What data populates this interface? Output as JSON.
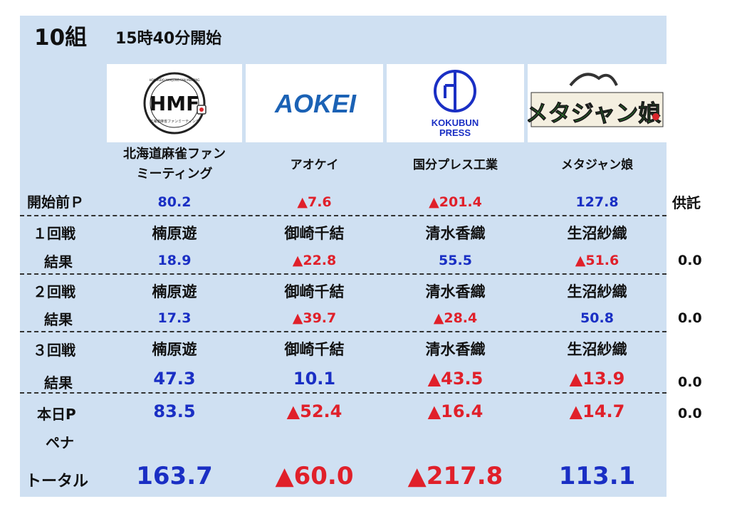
{
  "header": {
    "group": "10組",
    "start_time": "15時40分開始"
  },
  "teams": [
    {
      "name_line1": "北海道麻雀ファン",
      "name_line2": "ミーティング",
      "logo_text": "HMF",
      "logo_ring": "HOKKAIDO MAHJONG FAN MEETING",
      "logo_sub": "北海道麻雀ファンミーティング"
    },
    {
      "name_line1": "アオケイ",
      "logo_text": "AOKEI"
    },
    {
      "name_line1": "国分プレス工業",
      "logo_text": "KOKUBUN PRESS",
      "logo_line1": "KOKUBUN",
      "logo_line2": "PRESS"
    },
    {
      "name_line1": "メタジャン娘",
      "logo_text": "メタジャン娘"
    }
  ],
  "labels": {
    "start_p": "開始前Ｐ",
    "kyotaku": "供託",
    "round1": "１回戦",
    "round2": "２回戦",
    "round3": "３回戦",
    "result": "結果",
    "today": "本日P",
    "penalty": "ペナ",
    "total": "トータル"
  },
  "start_points": [
    "80.2",
    "▲7.6",
    "▲201.4",
    "127.8"
  ],
  "players": [
    "楠原遊",
    "御崎千結",
    "清水香織",
    "生沼紗織"
  ],
  "rounds": [
    {
      "results": [
        "18.9",
        "▲22.8",
        "55.5",
        "▲51.6"
      ],
      "kyotaku": "0.0"
    },
    {
      "results": [
        "17.3",
        "▲39.7",
        "▲28.4",
        "50.8"
      ],
      "kyotaku": "0.0"
    },
    {
      "results": [
        "47.3",
        "10.1",
        "▲43.5",
        "▲13.9"
      ],
      "kyotaku": "0.0"
    }
  ],
  "today_points": [
    "83.5",
    "▲52.4",
    "▲16.4",
    "▲14.7"
  ],
  "today_kyotaku": "0.0",
  "totals": [
    "163.7",
    "▲60.0",
    "▲217.8",
    "113.1"
  ],
  "colors": {
    "board": "#cfe0f2",
    "positive": "#1a2fc4",
    "negative": "#e0202a",
    "aokei": "#1b62b5",
    "kokubun": "#1a2fc4",
    "meta_green": "#2f9e2f",
    "meta_red": "#d8262c"
  }
}
